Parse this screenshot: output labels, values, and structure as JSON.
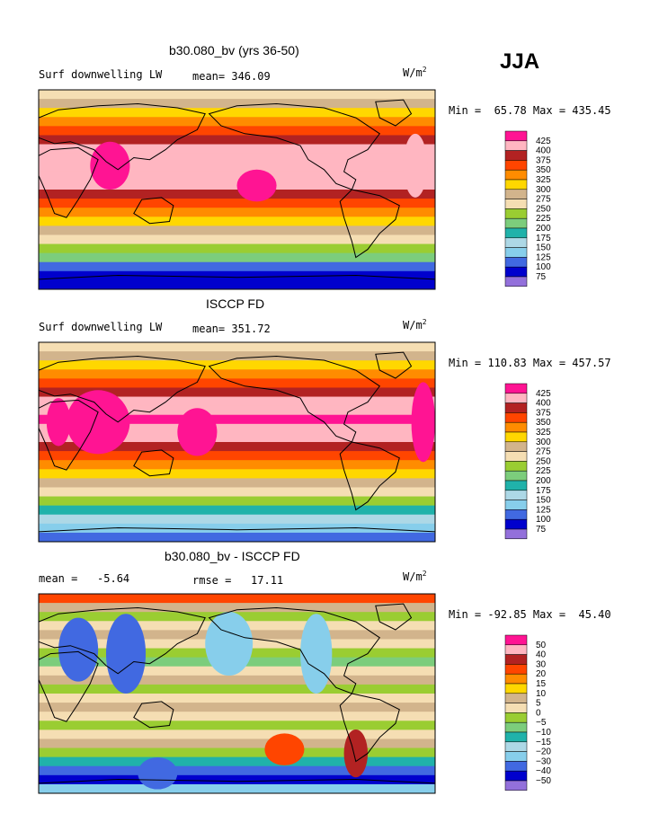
{
  "season": "JJA",
  "units_base": "W/m",
  "units_exp": "2",
  "panels": [
    {
      "title": "b30.080_bv (yrs 36-50)",
      "left_label": "Surf downwelling LW",
      "center_label": "mean= 346.09",
      "stats": "Min =  65.78 Max = 435.45",
      "levels": [
        "425",
        "400",
        "375",
        "350",
        "325",
        "300",
        "275",
        "250",
        "225",
        "200",
        "175",
        "150",
        "125",
        "100",
        "75"
      ],
      "colors": [
        "#ff1493",
        "#ffb6c1",
        "#b22222",
        "#ff4500",
        "#ff8c00",
        "#ffd700",
        "#d2b48c",
        "#f5deb3",
        "#9acd32",
        "#7ccd7c",
        "#20b2aa",
        "#add8e6",
        "#87ceeb",
        "#4169e1",
        "#0000cd",
        "#9370db"
      ]
    },
    {
      "title": "ISCCP FD",
      "left_label": "Surf downwelling LW",
      "center_label": "mean= 351.72",
      "stats": "Min = 110.83 Max = 457.57",
      "levels": [
        "425",
        "400",
        "375",
        "350",
        "325",
        "300",
        "275",
        "250",
        "225",
        "200",
        "175",
        "150",
        "125",
        "100",
        "75"
      ],
      "colors": [
        "#ff1493",
        "#ffb6c1",
        "#b22222",
        "#ff4500",
        "#ff8c00",
        "#ffd700",
        "#d2b48c",
        "#f5deb3",
        "#9acd32",
        "#7ccd7c",
        "#20b2aa",
        "#add8e6",
        "#87ceeb",
        "#4169e1",
        "#0000cd",
        "#9370db"
      ]
    },
    {
      "title": "b30.080_bv - ISCCP FD",
      "left_label": "mean =   -5.64",
      "center_label": "rmse =   17.11",
      "stats": "Min = -92.85 Max =  45.40",
      "levels": [
        "50",
        "40",
        "30",
        "20",
        "15",
        "10",
        "5",
        "0",
        "−5",
        "−10",
        "−15",
        "−20",
        "−30",
        "−40",
        "−50"
      ],
      "colors": [
        "#ff1493",
        "#ffb6c1",
        "#b22222",
        "#ff4500",
        "#ff8c00",
        "#ffd700",
        "#d2b48c",
        "#f5deb3",
        "#9acd32",
        "#7ccd7c",
        "#20b2aa",
        "#add8e6",
        "#87ceeb",
        "#4169e1",
        "#0000cd",
        "#9370db"
      ]
    }
  ]
}
